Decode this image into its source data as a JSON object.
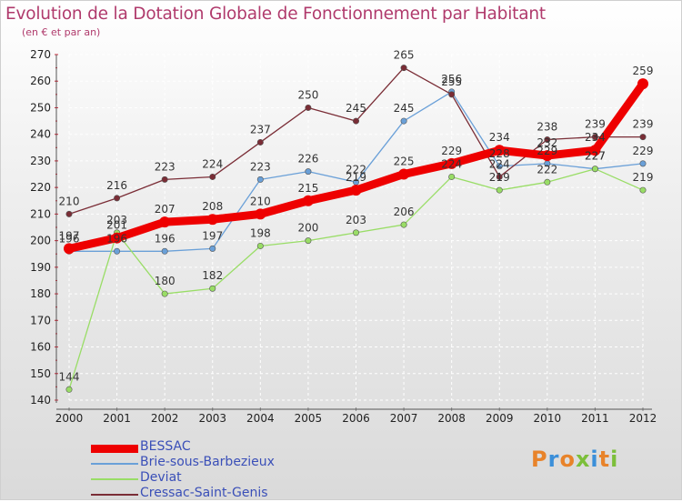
{
  "header": {
    "title": "Evolution de la Dotation Globale de Fonctionnement par Habitant",
    "subtitle": "(en € et par an)"
  },
  "logo": {
    "text": "Proxiti"
  },
  "chart_data": {
    "type": "line",
    "title": "Evolution de la Dotation Globale de Fonctionnement par Habitant",
    "subtitle": "(en € et par an)",
    "xlabel": "",
    "ylabel": "",
    "x": [
      "2000",
      "2001",
      "2002",
      "2003",
      "2004",
      "2005",
      "2006",
      "2007",
      "2008",
      "2009",
      "2010",
      "2011",
      "2012"
    ],
    "ylim": [
      140,
      270
    ],
    "yticks": [
      140,
      150,
      160,
      170,
      180,
      190,
      200,
      210,
      220,
      230,
      240,
      250,
      260,
      270
    ],
    "grid": true,
    "legend_position": "bottom-left",
    "series": [
      {
        "name": "BESSAC",
        "color": "#ee0000",
        "values": [
          197,
          201,
          207,
          208,
          210,
          215,
          219,
          225,
          229,
          234,
          232,
          234,
          259
        ]
      },
      {
        "name": "Brie-sous-Barbezieux",
        "color": "#6aa0d8",
        "values": [
          196,
          196,
          196,
          197,
          223,
          226,
          222,
          245,
          256,
          228,
          229,
          227,
          229
        ]
      },
      {
        "name": "Deviat",
        "color": "#99dd66",
        "values": [
          144,
          203,
          180,
          182,
          198,
          200,
          203,
          206,
          224,
          219,
          222,
          227,
          219
        ]
      },
      {
        "name": "Cressac-Saint-Genis",
        "color": "#7a2d36",
        "values": [
          210,
          216,
          223,
          224,
          237,
          250,
          245,
          265,
          255,
          224,
          238,
          239,
          239
        ]
      }
    ]
  }
}
